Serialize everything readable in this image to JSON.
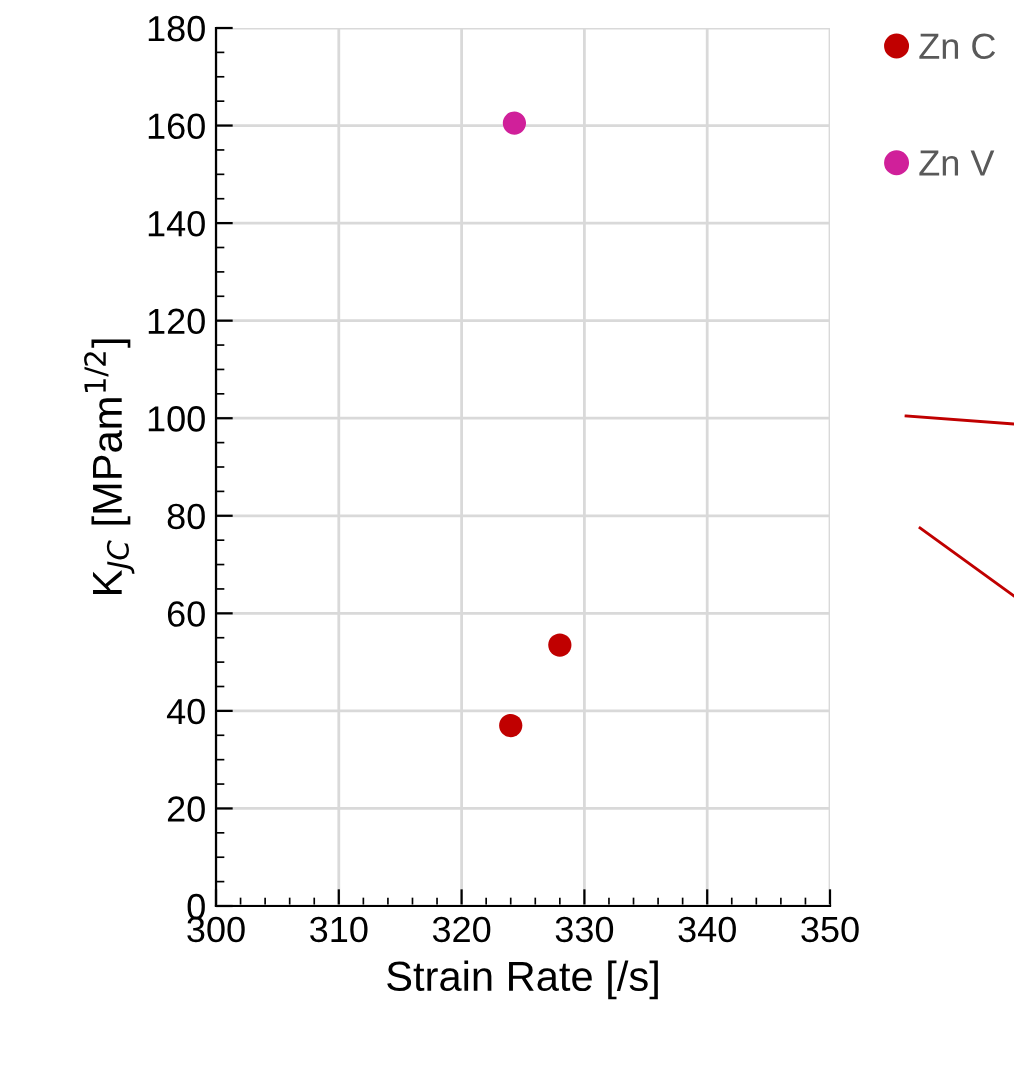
{
  "chart_data": {
    "type": "scatter",
    "xlabel": "Strain Rate [/s]",
    "ylabel": "K$_{JC}$ [MPam$^{1/2}$]",
    "series": [
      {
        "name": "Zn C",
        "color": "#c00000",
        "x": [
          324,
          328
        ],
        "values": [
          37,
          53.5
        ]
      },
      {
        "name": "Zn V",
        "color": "#d0209a",
        "x": [
          324.3
        ],
        "values": [
          160.5
        ]
      }
    ],
    "xlim": [
      300,
      350
    ],
    "xticks": [
      300,
      310,
      320,
      330,
      340,
      350
    ],
    "ylim": [
      0,
      180
    ],
    "yticks": [
      0,
      20,
      40,
      60,
      80,
      100,
      120,
      140,
      160,
      180
    ],
    "grid": true,
    "legend": "top right",
    "marker": "circle"
  }
}
